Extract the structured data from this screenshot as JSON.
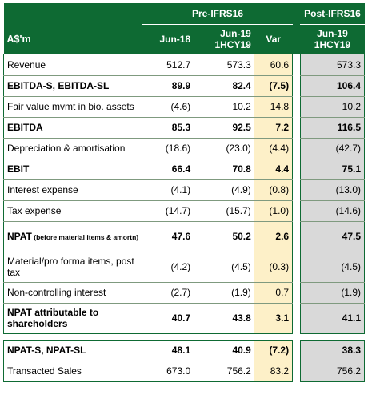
{
  "header": {
    "group_pre": "Pre-IFRS16",
    "group_post": "Post-IFRS16",
    "units": "A$'m",
    "col_jun18": "Jun-18",
    "col_jun19_l1": "Jun-19",
    "col_jun19_l2": "1HCY19",
    "col_var": "Var",
    "col_post_l1": "Jun-19",
    "col_post_l2": "1HCY19"
  },
  "rows": [
    {
      "label": "Revenue",
      "a": "512.7",
      "b": "573.3",
      "v": "60.6",
      "p": "573.3"
    },
    {
      "label": "EBITDA-S, EBITDA-SL",
      "a": "89.9",
      "b": "82.4",
      "v": "(7.5)",
      "p": "106.4"
    },
    {
      "label": "Fair value mvmt in bio. assets",
      "a": "(4.6)",
      "b": "10.2",
      "v": "14.8",
      "p": "10.2"
    },
    {
      "label": "EBITDA",
      "a": "85.3",
      "b": "92.5",
      "v": "7.2",
      "p": "116.5"
    },
    {
      "label": "Depreciation & amortisation",
      "a": "(18.6)",
      "b": "(23.0)",
      "v": "(4.4)",
      "p": "(42.7)"
    },
    {
      "label": "EBIT",
      "a": "66.4",
      "b": "70.8",
      "v": "4.4",
      "p": "75.1"
    },
    {
      "label": "Interest expense",
      "a": "(4.1)",
      "b": "(4.9)",
      "v": "(0.8)",
      "p": "(13.0)"
    },
    {
      "label": "Tax expense",
      "a": "(14.7)",
      "b": "(15.7)",
      "v": "(1.0)",
      "p": "(14.6)"
    },
    {
      "label": "NPAT",
      "label_note": "(before material items & amortn)",
      "a": "47.6",
      "b": "50.2",
      "v": "2.6",
      "p": "47.5"
    },
    {
      "label": "Material/pro forma items, post tax",
      "a": "(4.2)",
      "b": "(4.5)",
      "v": "(0.3)",
      "p": "(4.5)"
    },
    {
      "label": "Non-controlling interest",
      "a": "(2.7)",
      "b": "(1.9)",
      "v": "0.7",
      "p": "(1.9)"
    },
    {
      "label": "NPAT attributable to shareholders",
      "a": "40.7",
      "b": "43.8",
      "v": "3.1",
      "p": "41.1"
    },
    {
      "label": "NPAT-S, NPAT-SL",
      "a": "48.1",
      "b": "40.9",
      "v": "(7.2)",
      "p": "38.3"
    },
    {
      "label": "Transacted Sales",
      "a": "673.0",
      "b": "756.2",
      "v": "83.2",
      "p": "756.2"
    }
  ]
}
